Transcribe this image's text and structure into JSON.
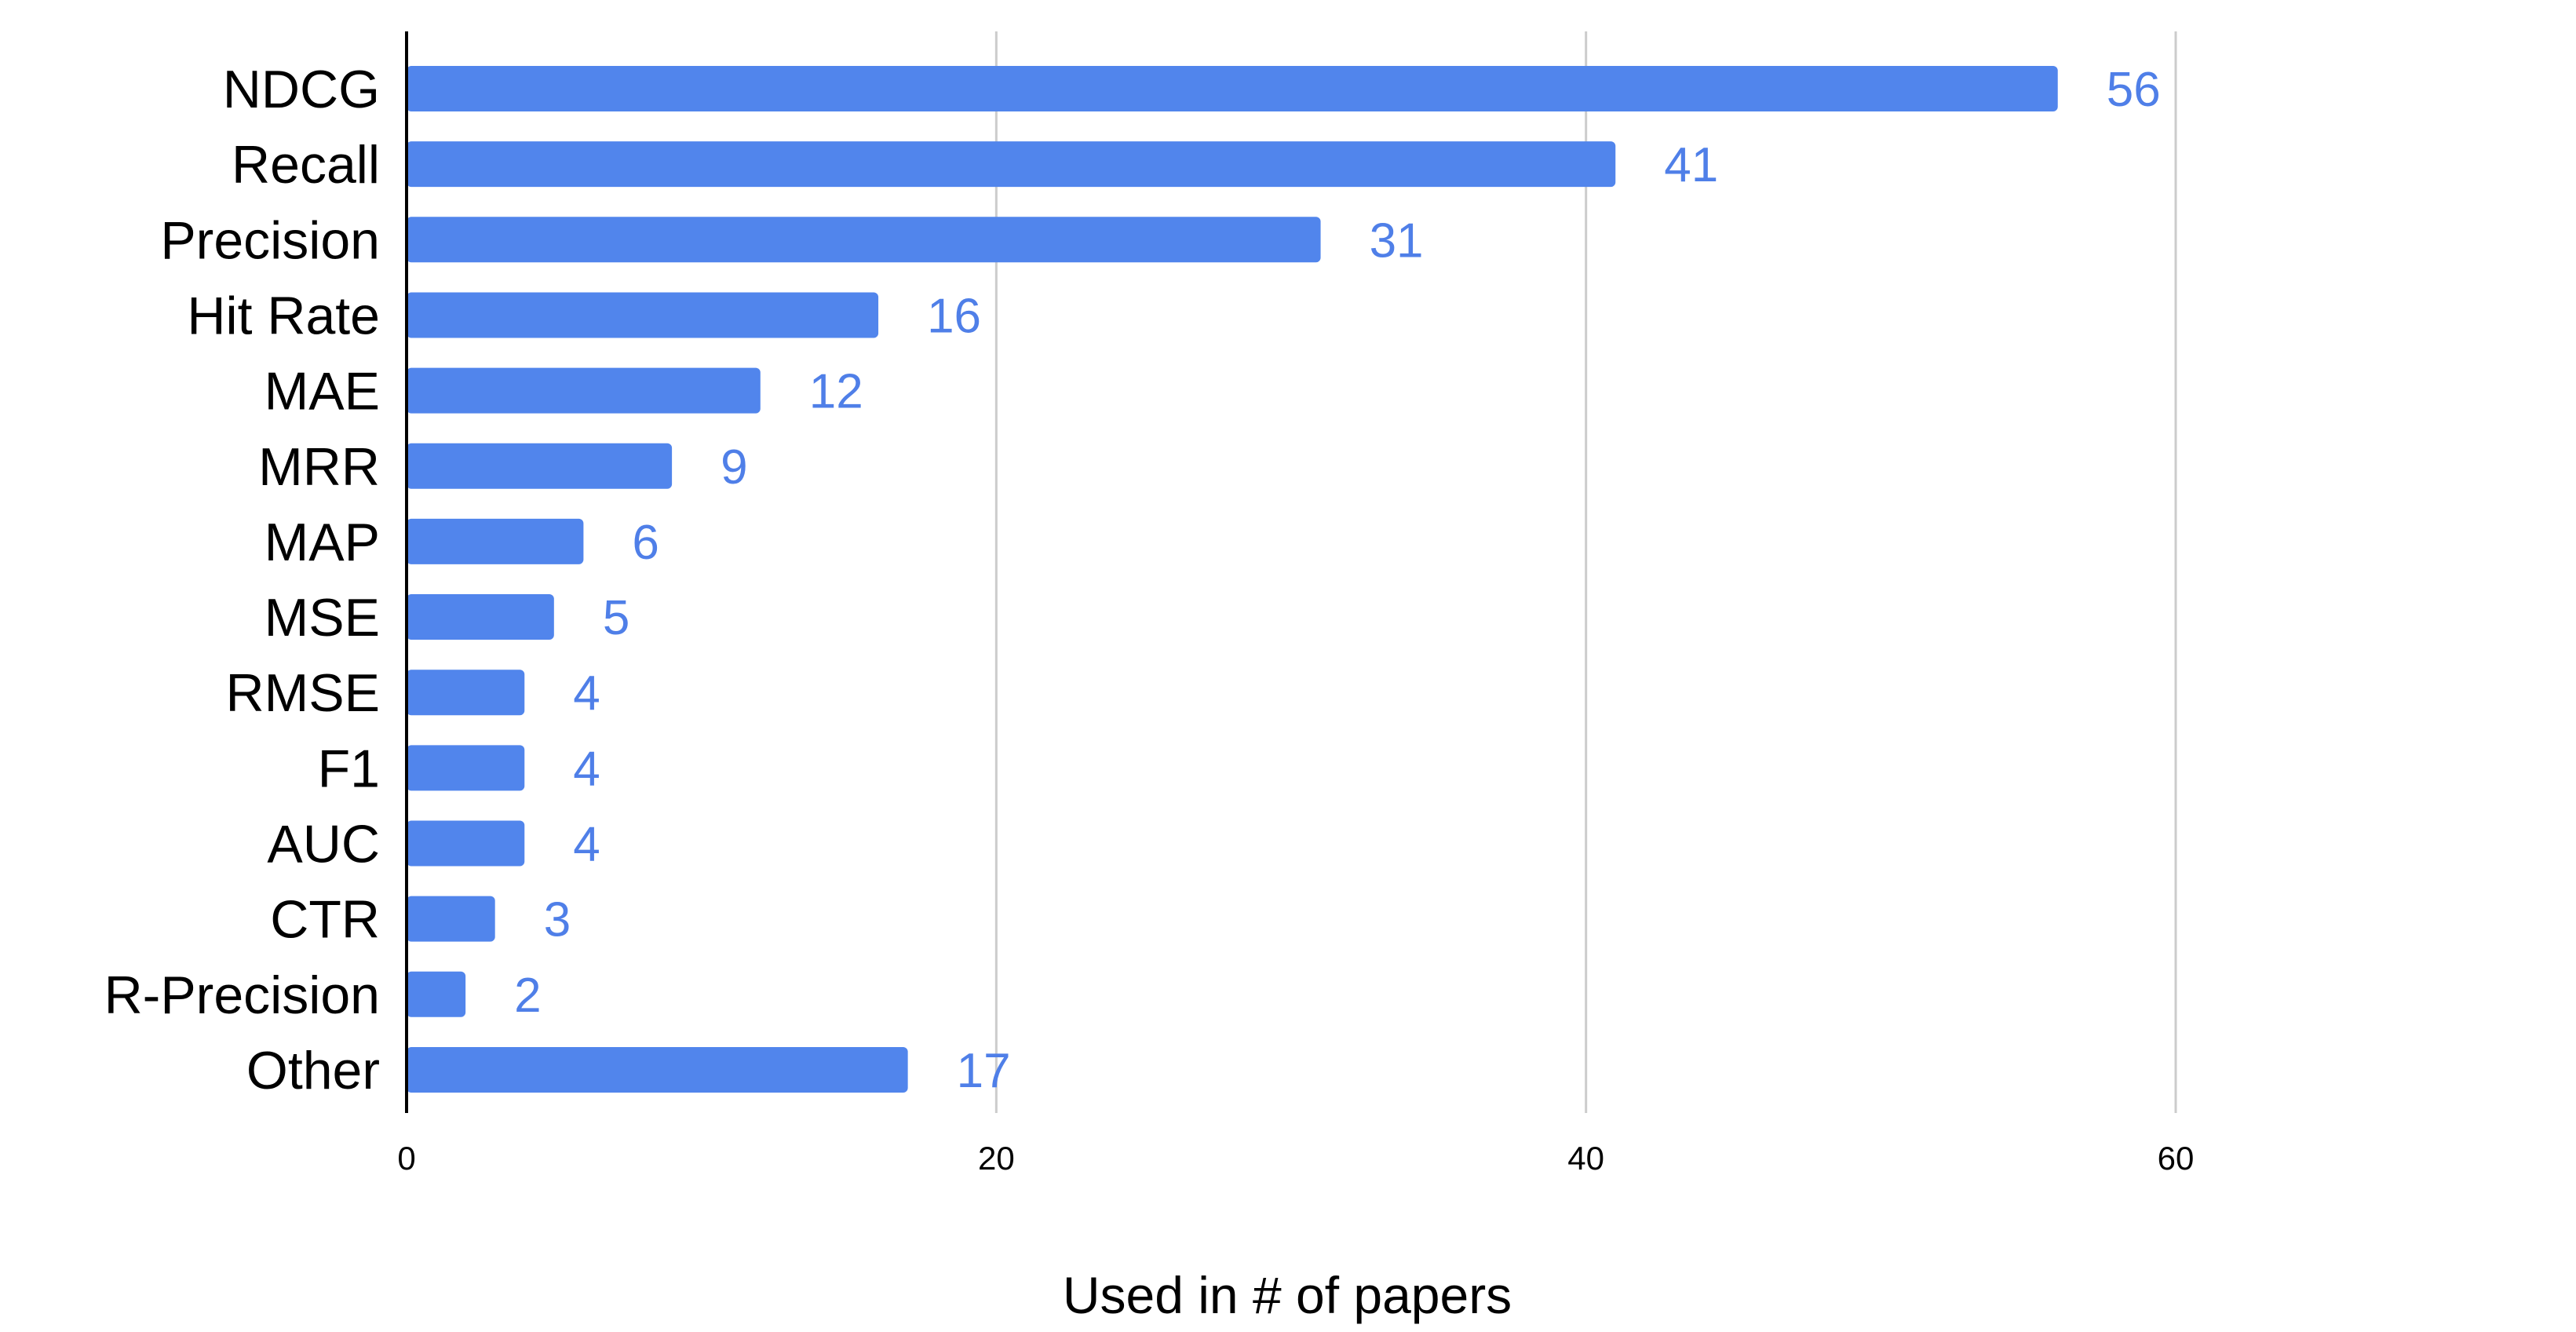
{
  "chart_data": {
    "type": "bar",
    "orientation": "horizontal",
    "categories": [
      "NDCG",
      "Recall",
      "Precision",
      "Hit Rate",
      "MAE",
      "MRR",
      "MAP",
      "MSE",
      "RMSE",
      "F1",
      "AUC",
      "CTR",
      "R-Precision",
      "Other"
    ],
    "values": [
      56,
      41,
      31,
      16,
      12,
      9,
      6,
      5,
      4,
      4,
      4,
      3,
      2,
      17
    ],
    "value_labels": [
      "56",
      "41",
      "31",
      "16",
      "12",
      "9",
      "6",
      "5",
      "4",
      "4",
      "4",
      "3",
      "2",
      "17"
    ],
    "xlabel": "Used in # of papers",
    "xlim": [
      0,
      60
    ],
    "xticks": [
      0,
      20,
      40,
      60
    ],
    "xtick_labels": [
      "0",
      "20",
      "40",
      "60"
    ],
    "grid": "vertical",
    "legend": "none",
    "bar_color": "#5185ec",
    "label_color": "#4f7fe8",
    "grid_color": "#cccccc",
    "axis_color": "#000000"
  }
}
